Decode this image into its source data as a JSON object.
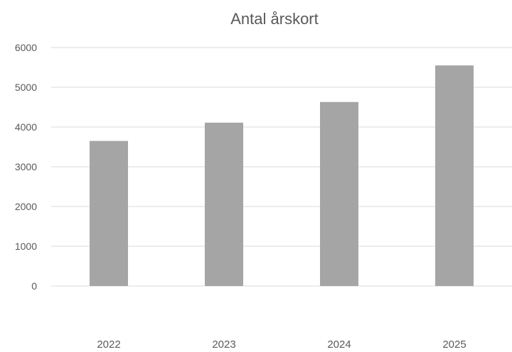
{
  "chart_data": {
    "type": "bar",
    "title": "Antal årskort",
    "xlabel": "",
    "ylabel": "",
    "categories": [
      "2022",
      "2023",
      "2024",
      "2025"
    ],
    "values": [
      3650,
      4110,
      4630,
      5550
    ],
    "ylim": [
      0,
      6000
    ],
    "yticks": [
      0,
      1000,
      2000,
      3000,
      4000,
      5000,
      6000
    ],
    "grid": true,
    "legend": "none",
    "bar_color": "#a5a5a5",
    "grid_color": "#d9d9d9",
    "text_color": "#595959"
  }
}
